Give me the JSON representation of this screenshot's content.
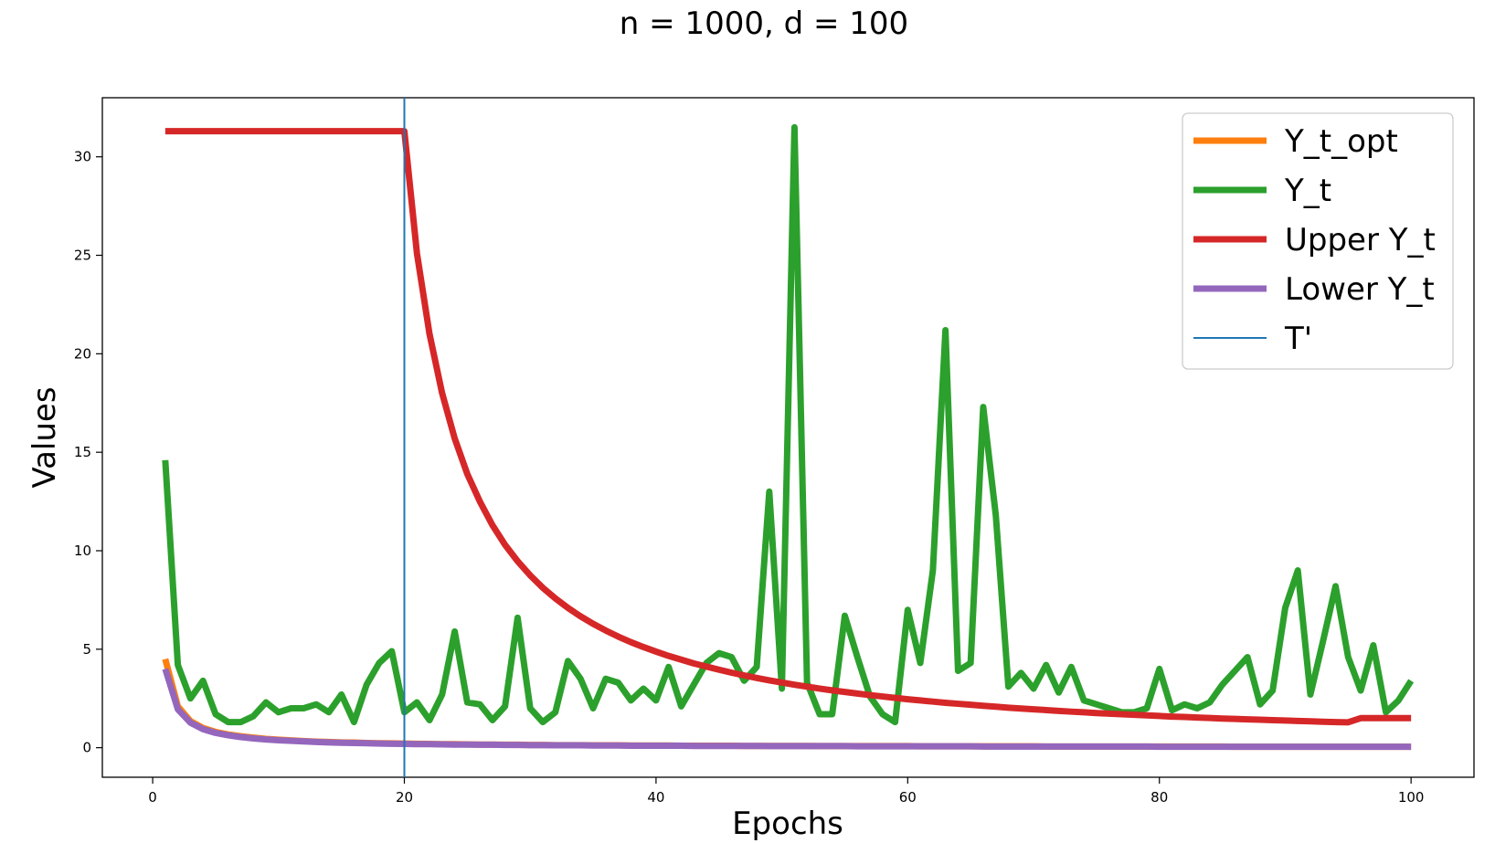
{
  "chart_data": {
    "type": "line",
    "title": "n = 1000, d = 100",
    "xlabel": "Epochs",
    "ylabel": "Values",
    "xlim": [
      -4,
      105
    ],
    "ylim": [
      -1.5,
      33.0
    ],
    "xticks": [
      0,
      20,
      40,
      60,
      80,
      100
    ],
    "yticks": [
      0,
      5,
      10,
      15,
      20,
      25,
      30
    ],
    "grid": false,
    "legend_position": "top-right",
    "vertical_line": {
      "name": "T'",
      "x": 20,
      "color": "#1f77b4"
    },
    "series": [
      {
        "name": "Y_t_opt",
        "color": "#ff7f0e",
        "x": [
          1,
          2,
          3,
          4,
          5,
          6,
          7,
          8,
          9,
          10,
          11,
          12,
          13,
          14,
          15,
          16,
          17,
          18,
          19,
          20,
          21,
          22,
          23,
          24,
          25,
          26,
          27,
          28,
          29,
          30,
          31,
          32,
          33,
          34,
          35,
          36,
          37,
          38,
          39,
          40,
          41,
          42,
          43,
          44,
          45,
          46,
          47,
          48,
          49,
          50,
          51,
          52,
          53,
          54,
          55,
          56,
          57,
          58,
          59,
          60,
          61,
          62,
          63,
          64,
          65,
          66,
          67,
          68,
          69,
          70,
          71,
          72,
          73,
          74,
          75,
          76,
          77,
          78,
          79,
          80,
          81,
          82,
          83,
          84,
          85,
          86,
          87,
          88,
          89,
          90,
          91,
          92,
          93,
          94,
          95,
          96,
          97,
          98,
          99,
          100
        ],
        "values": [
          4.5,
          2.1,
          1.35,
          1.0,
          0.8,
          0.67,
          0.58,
          0.51,
          0.45,
          0.41,
          0.37,
          0.34,
          0.31,
          0.29,
          0.27,
          0.26,
          0.24,
          0.23,
          0.22,
          0.21,
          0.2,
          0.19,
          0.18,
          0.18,
          0.17,
          0.16,
          0.16,
          0.15,
          0.15,
          0.14,
          0.14,
          0.13,
          0.13,
          0.13,
          0.12,
          0.12,
          0.12,
          0.11,
          0.11,
          0.11,
          0.11,
          0.1,
          0.1,
          0.1,
          0.1,
          0.1,
          0.09,
          0.09,
          0.09,
          0.09,
          0.09,
          0.09,
          0.08,
          0.08,
          0.08,
          0.08,
          0.08,
          0.08,
          0.08,
          0.08,
          0.07,
          0.07,
          0.07,
          0.07,
          0.07,
          0.07,
          0.07,
          0.07,
          0.07,
          0.07,
          0.06,
          0.06,
          0.06,
          0.06,
          0.06,
          0.06,
          0.06,
          0.06,
          0.06,
          0.06,
          0.06,
          0.06,
          0.06,
          0.06,
          0.06,
          0.05,
          0.05,
          0.05,
          0.05,
          0.05,
          0.05,
          0.05,
          0.05,
          0.05,
          0.05,
          0.05,
          0.05,
          0.05,
          0.05,
          0.05
        ]
      },
      {
        "name": "Y_t",
        "color": "#2ca02c",
        "x": [
          1,
          2,
          3,
          4,
          5,
          6,
          7,
          8,
          9,
          10,
          11,
          12,
          13,
          14,
          15,
          16,
          17,
          18,
          19,
          20,
          21,
          22,
          23,
          24,
          25,
          26,
          27,
          28,
          29,
          30,
          31,
          32,
          33,
          34,
          35,
          36,
          37,
          38,
          39,
          40,
          41,
          42,
          43,
          44,
          45,
          46,
          47,
          48,
          49,
          50,
          51,
          52,
          53,
          54,
          55,
          56,
          57,
          58,
          59,
          60,
          61,
          62,
          63,
          64,
          65,
          66,
          67,
          68,
          69,
          70,
          71,
          72,
          73,
          74,
          75,
          76,
          77,
          78,
          79,
          80,
          81,
          82,
          83,
          84,
          85,
          86,
          87,
          88,
          89,
          90,
          91,
          92,
          93,
          94,
          95,
          96,
          97,
          98,
          99,
          100
        ],
        "values": [
          14.6,
          4.2,
          2.5,
          3.4,
          1.7,
          1.3,
          1.3,
          1.6,
          2.3,
          1.8,
          2.0,
          2.0,
          2.2,
          1.8,
          2.7,
          1.3,
          3.2,
          4.3,
          4.9,
          1.8,
          2.3,
          1.4,
          2.7,
          5.9,
          2.3,
          2.2,
          1.4,
          2.1,
          6.6,
          2.0,
          1.3,
          1.8,
          4.4,
          3.5,
          2.0,
          3.5,
          3.3,
          2.4,
          3.0,
          2.4,
          4.1,
          2.1,
          3.2,
          4.3,
          4.8,
          4.6,
          3.4,
          4.1,
          13.0,
          3.0,
          31.5,
          3.3,
          1.7,
          1.7,
          6.7,
          4.6,
          2.6,
          1.7,
          1.3,
          7.0,
          4.3,
          9.0,
          21.2,
          3.9,
          4.3,
          17.3,
          11.8,
          3.1,
          3.8,
          3.0,
          4.2,
          2.8,
          4.1,
          2.4,
          2.2,
          2.0,
          1.8,
          1.8,
          2.0,
          4.0,
          1.9,
          2.2,
          2.0,
          2.3,
          3.2,
          3.9,
          4.6,
          2.2,
          2.9,
          7.1,
          9.0,
          2.7,
          5.4,
          8.2,
          4.6,
          2.9,
          5.2,
          1.8,
          2.4,
          3.4
        ]
      },
      {
        "name": "Upper Y_t",
        "color": "#d62728",
        "x": [
          1,
          2,
          3,
          4,
          5,
          6,
          7,
          8,
          9,
          10,
          11,
          12,
          13,
          14,
          15,
          16,
          17,
          18,
          19,
          20,
          21,
          22,
          23,
          24,
          25,
          26,
          27,
          28,
          29,
          30,
          31,
          32,
          33,
          34,
          35,
          36,
          37,
          38,
          39,
          40,
          41,
          42,
          43,
          44,
          45,
          46,
          47,
          48,
          49,
          50,
          51,
          52,
          53,
          54,
          55,
          56,
          57,
          58,
          59,
          60,
          61,
          62,
          63,
          64,
          65,
          66,
          67,
          68,
          69,
          70,
          71,
          72,
          73,
          74,
          75,
          76,
          77,
          78,
          79,
          80,
          81,
          82,
          83,
          84,
          85,
          86,
          87,
          88,
          89,
          90,
          91,
          92,
          93,
          94,
          95,
          96,
          97,
          98,
          99,
          100
        ],
        "values": [
          31.3,
          31.3,
          31.3,
          31.3,
          31.3,
          31.3,
          31.3,
          31.3,
          31.3,
          31.3,
          31.3,
          31.3,
          31.3,
          31.3,
          31.3,
          31.3,
          31.3,
          31.3,
          31.3,
          31.3,
          25.1,
          21.0,
          18.0,
          15.7,
          13.9,
          12.5,
          11.3,
          10.3,
          9.47,
          8.75,
          8.12,
          7.58,
          7.1,
          6.67,
          6.29,
          5.95,
          5.64,
          5.36,
          5.11,
          4.88,
          4.66,
          4.47,
          4.28,
          4.12,
          3.96,
          3.81,
          3.67,
          3.54,
          3.42,
          3.31,
          3.2,
          3.1,
          3.0,
          2.91,
          2.83,
          2.75,
          2.67,
          2.6,
          2.53,
          2.46,
          2.4,
          2.34,
          2.28,
          2.23,
          2.18,
          2.13,
          2.08,
          2.03,
          1.99,
          1.95,
          1.91,
          1.87,
          1.83,
          1.8,
          1.76,
          1.73,
          1.7,
          1.67,
          1.64,
          1.61,
          1.58,
          1.56,
          1.53,
          1.51,
          1.48,
          1.46,
          1.44,
          1.42,
          1.4,
          1.38,
          1.36,
          1.34,
          1.32,
          1.3,
          1.29,
          1.5,
          1.5,
          1.5,
          1.5,
          1.5
        ]
      },
      {
        "name": "Lower Y_t",
        "color": "#9467bd",
        "x": [
          1,
          2,
          3,
          4,
          5,
          6,
          7,
          8,
          9,
          10,
          11,
          12,
          13,
          14,
          15,
          16,
          17,
          18,
          19,
          20,
          21,
          22,
          23,
          24,
          25,
          26,
          27,
          28,
          29,
          30,
          31,
          32,
          33,
          34,
          35,
          36,
          37,
          38,
          39,
          40,
          41,
          42,
          43,
          44,
          45,
          46,
          47,
          48,
          49,
          50,
          51,
          52,
          53,
          54,
          55,
          56,
          57,
          58,
          59,
          60,
          61,
          62,
          63,
          64,
          65,
          66,
          67,
          68,
          69,
          70,
          71,
          72,
          73,
          74,
          75,
          76,
          77,
          78,
          79,
          80,
          81,
          82,
          83,
          84,
          85,
          86,
          87,
          88,
          89,
          90,
          91,
          92,
          93,
          94,
          95,
          96,
          97,
          98,
          99,
          100
        ],
        "values": [
          4.0,
          1.95,
          1.27,
          0.94,
          0.75,
          0.63,
          0.54,
          0.47,
          0.42,
          0.38,
          0.35,
          0.32,
          0.29,
          0.27,
          0.25,
          0.24,
          0.23,
          0.21,
          0.2,
          0.19,
          0.18,
          0.18,
          0.17,
          0.16,
          0.16,
          0.15,
          0.15,
          0.14,
          0.14,
          0.13,
          0.13,
          0.12,
          0.12,
          0.12,
          0.11,
          0.11,
          0.11,
          0.1,
          0.1,
          0.1,
          0.1,
          0.1,
          0.09,
          0.09,
          0.09,
          0.09,
          0.09,
          0.09,
          0.08,
          0.08,
          0.08,
          0.08,
          0.08,
          0.08,
          0.08,
          0.07,
          0.07,
          0.07,
          0.07,
          0.07,
          0.07,
          0.07,
          0.07,
          0.07,
          0.07,
          0.06,
          0.06,
          0.06,
          0.06,
          0.06,
          0.06,
          0.06,
          0.06,
          0.06,
          0.06,
          0.06,
          0.06,
          0.06,
          0.06,
          0.05,
          0.05,
          0.05,
          0.05,
          0.05,
          0.05,
          0.05,
          0.05,
          0.05,
          0.05,
          0.05,
          0.05,
          0.05,
          0.05,
          0.05,
          0.05,
          0.05,
          0.05,
          0.05,
          0.05,
          0.05
        ]
      }
    ]
  }
}
